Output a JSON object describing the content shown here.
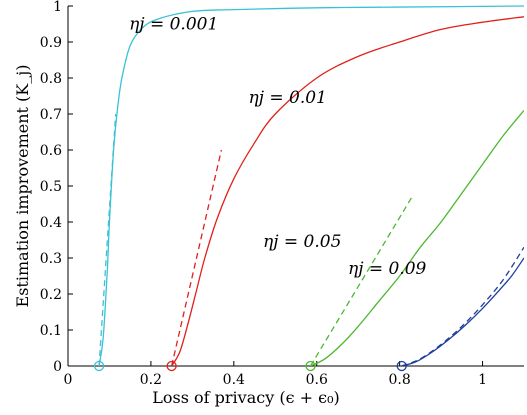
{
  "chart_data": {
    "type": "line",
    "title": "",
    "xlabel": "Loss of privacy (ϵ + ϵ₀)",
    "ylabel": "Estimation improvement (K_j)",
    "xlim": [
      0,
      1.1
    ],
    "ylim": [
      0,
      1
    ],
    "xticks": [
      0,
      0.2,
      0.4,
      0.6,
      0.8,
      1
    ],
    "xtick_labels": [
      "0",
      "0.2",
      "0.4",
      "0.6",
      "0.8",
      "1"
    ],
    "yticks": [
      0,
      0.1,
      0.2,
      0.3,
      0.4,
      0.5,
      0.6,
      0.7,
      0.8,
      0.9,
      1
    ],
    "ytick_labels": [
      "0",
      "0.1",
      "0.2",
      "0.3",
      "0.4",
      "0.5",
      "0.6",
      "0.7",
      "0.8",
      "0.9",
      "1"
    ],
    "grid": false,
    "legend": "none",
    "series": [
      {
        "name": "ηj = 0.001",
        "color": "#39c2d6",
        "solid": {
          "x": [
            0.075,
            0.085,
            0.095,
            0.1,
            0.11,
            0.12,
            0.13,
            0.15,
            0.18,
            0.22,
            0.3,
            0.4,
            0.6,
            0.8,
            1.1
          ],
          "y": [
            0,
            0.08,
            0.27,
            0.4,
            0.6,
            0.72,
            0.8,
            0.89,
            0.94,
            0.965,
            0.985,
            0.99,
            0.995,
            0.997,
            1.0
          ]
        },
        "dashed": {
          "x": [
            0.075,
            0.115
          ],
          "y": [
            0,
            0.7
          ]
        },
        "marker": {
          "x": 0.075,
          "y": 0
        }
      },
      {
        "name": "ηj = 0.01",
        "color": "#e0201b",
        "solid": {
          "x": [
            0.25,
            0.27,
            0.29,
            0.31,
            0.33,
            0.36,
            0.4,
            0.45,
            0.5,
            0.6,
            0.7,
            0.8,
            0.9,
            1.0,
            1.1
          ],
          "y": [
            0,
            0.04,
            0.12,
            0.21,
            0.3,
            0.41,
            0.52,
            0.62,
            0.7,
            0.8,
            0.86,
            0.9,
            0.935,
            0.955,
            0.97
          ]
        },
        "dashed": {
          "x": [
            0.25,
            0.37
          ],
          "y": [
            0,
            0.6
          ]
        },
        "marker": {
          "x": 0.25,
          "y": 0
        }
      },
      {
        "name": "ηj = 0.05",
        "color": "#4cb82e",
        "solid": {
          "x": [
            0.585,
            0.62,
            0.66,
            0.7,
            0.75,
            0.8,
            0.85,
            0.9,
            0.95,
            1.0,
            1.05,
            1.1
          ],
          "y": [
            0,
            0.02,
            0.06,
            0.11,
            0.18,
            0.25,
            0.33,
            0.4,
            0.48,
            0.56,
            0.64,
            0.71
          ]
        },
        "dashed": {
          "x": [
            0.585,
            0.83
          ],
          "y": [
            0,
            0.47
          ]
        },
        "marker": {
          "x": 0.585,
          "y": 0
        }
      },
      {
        "name": "ηj = 0.09",
        "color": "#1f3d9e",
        "solid": {
          "x": [
            0.805,
            0.84,
            0.88,
            0.92,
            0.96,
            1.0,
            1.04,
            1.07,
            1.1
          ],
          "y": [
            0,
            0.012,
            0.04,
            0.075,
            0.115,
            0.16,
            0.21,
            0.25,
            0.3
          ]
        },
        "dashed": {
          "x": [
            0.805,
            0.85,
            0.9,
            0.95,
            1.0,
            1.05,
            1.1
          ],
          "y": [
            0,
            0.02,
            0.06,
            0.11,
            0.17,
            0.24,
            0.33
          ]
        },
        "marker": {
          "x": 0.805,
          "y": 0
        }
      }
    ],
    "annotations": [
      {
        "text": "ηj = 0.001",
        "x": 0.255,
        "y": 0.935
      },
      {
        "text": "ηj = 0.01",
        "x": 0.53,
        "y": 0.73
      },
      {
        "text": "ηj = 0.05",
        "x": 0.565,
        "y": 0.33
      },
      {
        "text": "ηj = 0.09",
        "x": 0.77,
        "y": 0.255
      }
    ]
  }
}
